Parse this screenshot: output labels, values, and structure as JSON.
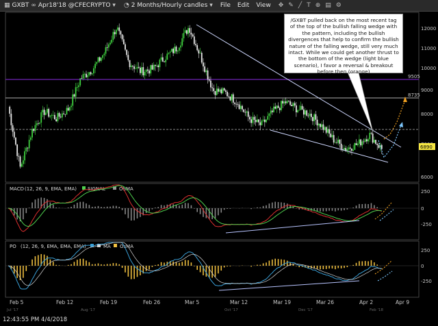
{
  "toolbar": {
    "symbol": "GXBT",
    "expiry": "Apr18'18",
    "source": "@CFECRYPTO",
    "timeframe": "2 Months/Hourly candles",
    "menu": [
      "File",
      "Edit",
      "View"
    ]
  },
  "note_text": "/GXBT pulled back on the most recent tag of the top of the bullish falling wedge with the pattern, including the bullish divergences that help to confirm the bullish nature of the falling wedge, still very much intact. While we could get another thrust to the bottom of the wedge (light blue scenario), I favor a reversal & breakout before then (orange)",
  "status": {
    "time": "12:43:55 PM 4/4/2018"
  },
  "price_axis": [
    "12000",
    "11000",
    "10000",
    "9000",
    "8000",
    "7000",
    "6000"
  ],
  "level_labels": {
    "upper": "9505",
    "lower": "8735",
    "current": "6890"
  },
  "macd": {
    "label": "MACD",
    "params": "(12, 26, 9, EMA, EMA)",
    "signal": "SIGNAL",
    "osma": "OSMA",
    "axis": [
      "250",
      "0",
      "-250"
    ]
  },
  "po": {
    "label": "PO",
    "params": "(12, 26, 9, EMA, EMA, EMA)",
    "ma": "MA",
    "osma": "OsMA",
    "axis": [
      "250",
      "0",
      "-250"
    ]
  },
  "x_axis": [
    "Feb 5",
    "Feb 12",
    "Feb 19",
    "Feb 26",
    "Mar 5",
    "Mar 12",
    "Mar 19",
    "Mar 26",
    "Apr 2",
    "Apr 9"
  ],
  "x_axis_faint": [
    "Jul '17",
    "Aug '17",
    "Oct '17",
    "Dec '17",
    "Feb '18"
  ],
  "colors": {
    "purple_line": "#8a2be2",
    "wedge": "#cfd8ff",
    "orange": "#f0a020",
    "lightblue": "#7ec8ff"
  },
  "chart_data": {
    "type": "candlestick",
    "ylim": [
      5600,
      12600
    ],
    "levels": [
      9505,
      8735,
      7900
    ],
    "current_price": 6890,
    "close": [
      {
        "x": "Feb 5",
        "y": 8700
      },
      {
        "x": "Feb 6",
        "y": 6100
      },
      {
        "x": "Feb 7",
        "y": 7700
      },
      {
        "x": "Feb 9",
        "y": 8500
      },
      {
        "x": "Feb 11",
        "y": 8200
      },
      {
        "x": "Feb 12",
        "y": 8600
      },
      {
        "x": "Feb 14",
        "y": 9900
      },
      {
        "x": "Feb 16",
        "y": 10300
      },
      {
        "x": "Feb 18",
        "y": 11000
      },
      {
        "x": "Feb 20",
        "y": 12100
      },
      {
        "x": "Feb 22",
        "y": 10600
      },
      {
        "x": "Feb 24",
        "y": 10200
      },
      {
        "x": "Feb 26",
        "y": 10300
      },
      {
        "x": "Feb 28",
        "y": 10800
      },
      {
        "x": "Mar 2",
        "y": 11200
      },
      {
        "x": "Mar 5",
        "y": 12100
      },
      {
        "x": "Mar 7",
        "y": 10800
      },
      {
        "x": "Mar 9",
        "y": 9400
      },
      {
        "x": "Mar 11",
        "y": 9300
      },
      {
        "x": "Mar 13",
        "y": 8900
      },
      {
        "x": "Mar 15",
        "y": 8200
      },
      {
        "x": "Mar 17",
        "y": 7900
      },
      {
        "x": "Mar 19",
        "y": 8500
      },
      {
        "x": "Mar 21",
        "y": 8900
      },
      {
        "x": "Mar 23",
        "y": 8600
      },
      {
        "x": "Mar 25",
        "y": 8400
      },
      {
        "x": "Mar 27",
        "y": 7900
      },
      {
        "x": "Mar 29",
        "y": 7300
      },
      {
        "x": "Mar 31",
        "y": 6900
      },
      {
        "x": "Apr 2",
        "y": 7100
      },
      {
        "x": "Apr 3",
        "y": 7500
      },
      {
        "x": "Apr 4",
        "y": 6900
      }
    ],
    "wedge_upper": [
      {
        "x": "Mar 4",
        "y": 12100
      },
      {
        "x": "Apr 4",
        "y": 7000
      }
    ],
    "wedge_lower": [
      {
        "x": "Mar 16",
        "y": 7700
      },
      {
        "x": "Apr 4",
        "y": 6600
      }
    ],
    "scenario_orange": [
      {
        "x": "Apr 4",
        "y": 6900
      },
      {
        "x": "Apr 6",
        "y": 7300
      },
      {
        "x": "Apr 9",
        "y": 8700
      }
    ],
    "scenario_lightblue": [
      {
        "x": "Apr 4",
        "y": 6900
      },
      {
        "x": "Apr 6",
        "y": 6700
      },
      {
        "x": "Apr 9",
        "y": 8200
      }
    ]
  }
}
